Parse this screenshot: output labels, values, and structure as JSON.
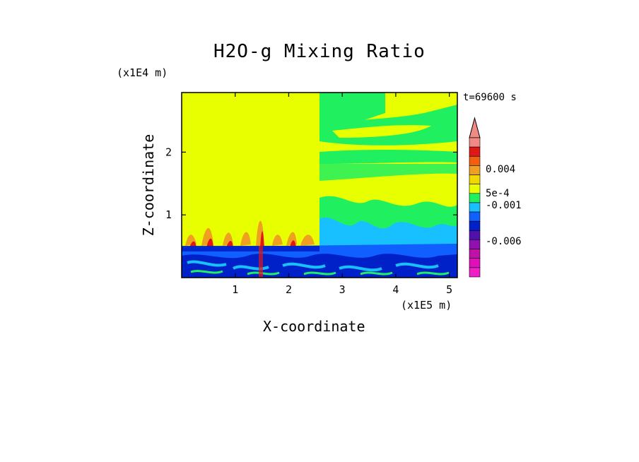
{
  "chart_data": {
    "type": "heatmap",
    "title": "H2O-g Mixing Ratio",
    "xlabel": "X-coordinate",
    "ylabel": "Z-coordinate",
    "x_unit": "(x1E5 m)",
    "y_unit": "(x1E4 m)",
    "time_label": "t=69600 s",
    "xlim": [
      0,
      5.15
    ],
    "ylim": [
      0,
      2.95
    ],
    "x_ticks": [
      1,
      2,
      3,
      4,
      5
    ],
    "y_ticks": [
      1,
      2
    ],
    "colorbar": {
      "labels": [
        "0.004",
        "5e-4",
        "-0.001",
        "-0.006"
      ],
      "colors": [
        "#f08a84",
        "#e01818",
        "#f06010",
        "#f0a020",
        "#f0d800",
        "#e8ff00",
        "#20f060",
        "#18c0ff",
        "#1060ff",
        "#0020c8",
        "#5010b0",
        "#9010b0",
        "#c010a8",
        "#e010b8",
        "#f020c8"
      ]
    }
  }
}
